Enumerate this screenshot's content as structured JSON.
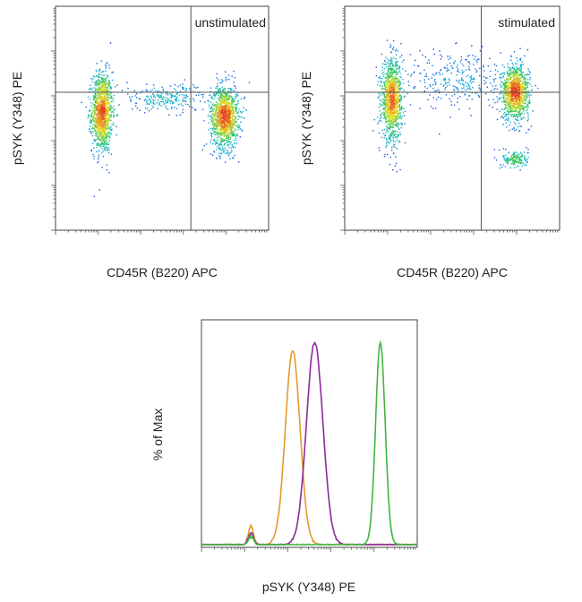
{
  "chart_data": [
    {
      "type": "scatter",
      "subtype": "flow-cytometry-density",
      "panel_label": "unstimulated",
      "xlabel": "CD45R (B220) APC",
      "ylabel": "pSYK (Y348) PE",
      "xscale": "log",
      "yscale": "log",
      "xlim": [
        1,
        100000
      ],
      "ylim": [
        1,
        100000
      ],
      "gate_lines": {
        "x": 1500,
        "y": 1200
      },
      "populations": [
        {
          "name": "",
          "x_center": 12,
          "y_center": 450,
          "x_spread": 0.12,
          "y_spread": 0.45,
          "weight": 0.45
        },
        {
          "name": "",
          "x_center": 9000,
          "y_center": 350,
          "x_spread": 0.16,
          "y_spread": 0.35,
          "weight": 0.45
        },
        {
          "name": "",
          "x_center": 400,
          "y_center": 900,
          "x_spread": 0.6,
          "y_spread": 0.15,
          "weight": 0.1
        }
      ],
      "colormap": [
        "#1f2fd6",
        "#18b4e0",
        "#2ec45a",
        "#e8e020",
        "#e23a1a"
      ]
    },
    {
      "type": "scatter",
      "subtype": "flow-cytometry-density",
      "panel_label": "stimulated",
      "xlabel": "CD45R (B220) APC",
      "ylabel": "pSYK (Y348) PE",
      "xscale": "log",
      "yscale": "log",
      "xlim": [
        1,
        100000
      ],
      "ylim": [
        1,
        100000
      ],
      "gate_lines": {
        "x": 1500,
        "y": 1200
      },
      "populations": [
        {
          "name": "",
          "x_center": 12,
          "y_center": 800,
          "x_spread": 0.12,
          "y_spread": 0.45,
          "weight": 0.42
        },
        {
          "name": "",
          "x_center": 9000,
          "y_center": 1200,
          "x_spread": 0.16,
          "y_spread": 0.3,
          "weight": 0.4
        },
        {
          "name": "",
          "x_center": 9000,
          "y_center": 40,
          "x_spread": 0.15,
          "y_spread": 0.1,
          "weight": 0.06
        },
        {
          "name": "",
          "x_center": 400,
          "y_center": 2500,
          "x_spread": 0.6,
          "y_spread": 0.35,
          "weight": 0.12
        }
      ],
      "colormap": [
        "#1f2fd6",
        "#18b4e0",
        "#2ec45a",
        "#e8e020",
        "#e23a1a"
      ]
    },
    {
      "type": "line",
      "subtype": "histogram-overlay",
      "xlabel": "pSYK (Y348) PE",
      "ylabel": "% of Max",
      "xscale": "log",
      "xlim": [
        1,
        100000
      ],
      "ylim": [
        0,
        100
      ],
      "series": [
        {
          "color": "#e39a2c",
          "peak_x": 130,
          "peak_y": 96,
          "width": 0.17,
          "minor_peak_x": 14,
          "minor_peak_y": 9
        },
        {
          "color": "#8b2a9b",
          "peak_x": 420,
          "peak_y": 100,
          "width": 0.19,
          "minor_peak_x": 14,
          "minor_peak_y": 6
        },
        {
          "color": "#3fb53f",
          "peak_x": 14000,
          "peak_y": 100,
          "width": 0.11,
          "minor_peak_x": 14,
          "minor_peak_y": 4
        }
      ]
    }
  ]
}
